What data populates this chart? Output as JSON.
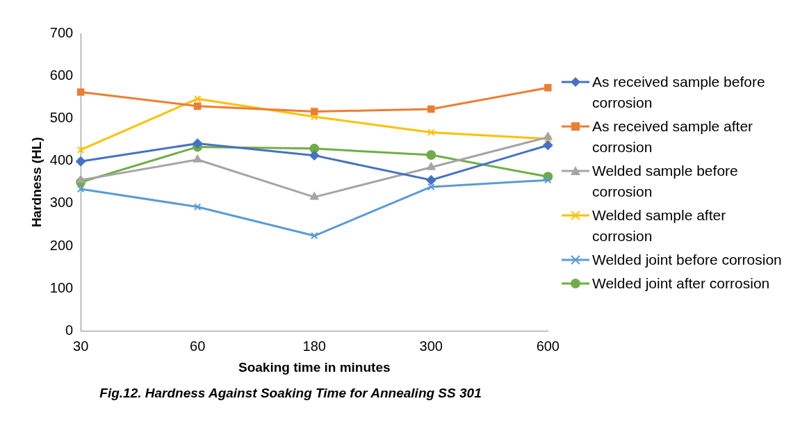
{
  "chart_data": {
    "type": "line",
    "title": "Fig.12. Hardness Against Soaking Time for Annealing SS 301",
    "xlabel": "Soaking time in minutes",
    "ylabel": "Hardness (HL)",
    "categories": [
      "30",
      "60",
      "180",
      "300",
      "600"
    ],
    "ylim": [
      0,
      700
    ],
    "yticks": [
      0,
      100,
      200,
      300,
      400,
      500,
      600,
      700
    ],
    "grid": false,
    "legend": "right",
    "line_style": "solid",
    "series": [
      {
        "name": "As received sample before corrosion",
        "color": "#4472c4",
        "marker": "diamond",
        "values": [
          399,
          441,
          413,
          355,
          437
        ]
      },
      {
        "name": "As received sample after corrosion",
        "color": "#ed7d31",
        "marker": "square",
        "values": [
          562,
          529,
          516,
          522,
          572
        ]
      },
      {
        "name": "Welded sample before corrosion",
        "color": "#a5a5a5",
        "marker": "triangle",
        "values": [
          355,
          403,
          315,
          385,
          456
        ]
      },
      {
        "name": "Welded sample after corrosion",
        "color": "#ffc000",
        "marker": "cross",
        "values": [
          426,
          546,
          504,
          467,
          452
        ]
      },
      {
        "name": "Welded joint before corrosion",
        "color": "#5b9bd5",
        "marker": "cross",
        "values": [
          334,
          292,
          224,
          339,
          355
        ]
      },
      {
        "name": "Welded joint after corrosion",
        "color": "#70ad47",
        "marker": "circle",
        "values": [
          350,
          433,
          429,
          414,
          363
        ]
      }
    ]
  }
}
